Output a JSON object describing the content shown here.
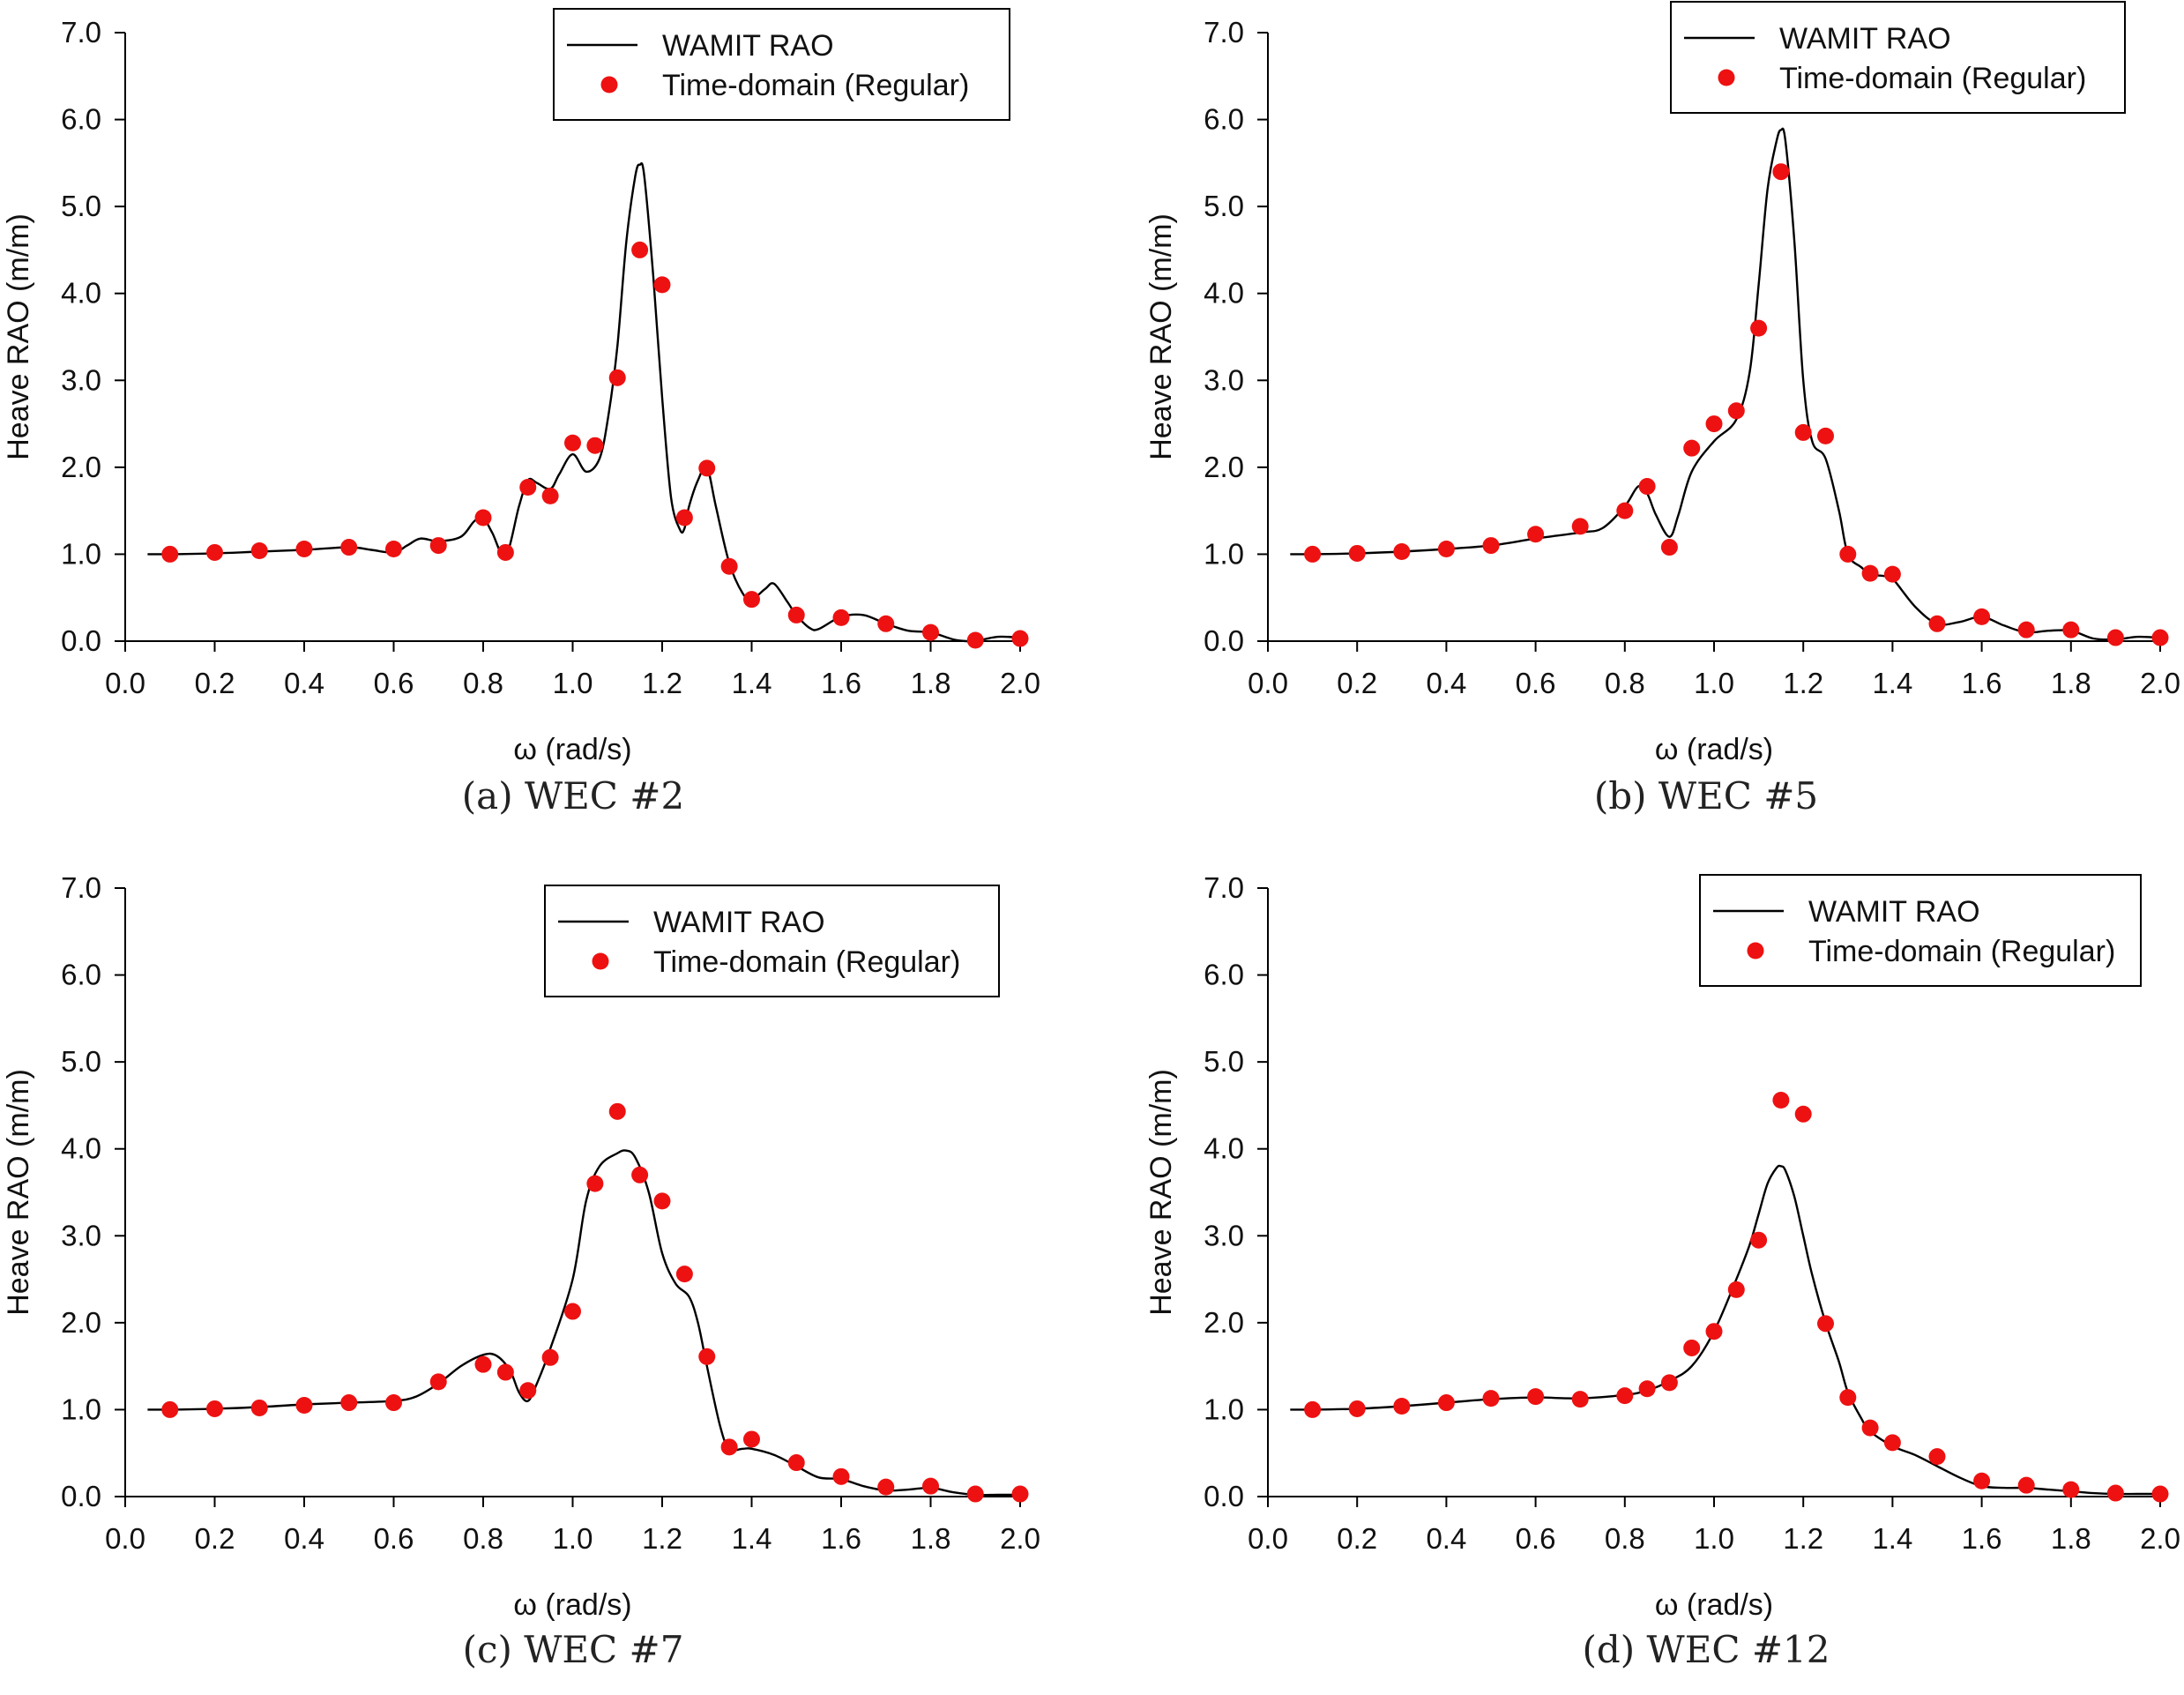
{
  "figure": {
    "description_free": true
  },
  "chart_data": [
    {
      "id": "a",
      "type": "line",
      "caption": "(a) WEC #2",
      "xlabel": "ω (rad/s)",
      "ylabel": "Heave RAO (m/m)",
      "xlim": [
        0.0,
        2.0
      ],
      "ylim": [
        0.0,
        7.0
      ],
      "xticks": [
        "0.0",
        "0.2",
        "0.4",
        "0.6",
        "0.8",
        "1.0",
        "1.2",
        "1.4",
        "1.6",
        "1.8",
        "2.0"
      ],
      "yticks": [
        "0.0",
        "1.0",
        "2.0",
        "3.0",
        "4.0",
        "5.0",
        "6.0",
        "7.0"
      ],
      "legend_position": "top-right",
      "series": [
        {
          "name": "WAMIT RAO",
          "style": "line",
          "color": "#000000",
          "x": [
            0.05,
            0.1,
            0.2,
            0.3,
            0.4,
            0.5,
            0.55,
            0.6,
            0.63,
            0.66,
            0.7,
            0.75,
            0.78,
            0.8,
            0.82,
            0.85,
            0.88,
            0.9,
            0.92,
            0.95,
            0.97,
            1.0,
            1.03,
            1.06,
            1.08,
            1.1,
            1.12,
            1.14,
            1.15,
            1.16,
            1.18,
            1.2,
            1.22,
            1.24,
            1.25,
            1.26,
            1.28,
            1.3,
            1.32,
            1.35,
            1.38,
            1.4,
            1.43,
            1.45,
            1.48,
            1.5,
            1.53,
            1.55,
            1.6,
            1.65,
            1.7,
            1.75,
            1.8,
            1.85,
            1.88,
            1.9,
            1.95,
            2.0
          ],
          "values": [
            1.0,
            1.0,
            1.01,
            1.03,
            1.05,
            1.08,
            1.05,
            1.02,
            1.1,
            1.18,
            1.15,
            1.2,
            1.38,
            1.42,
            1.25,
            0.98,
            1.55,
            1.85,
            1.82,
            1.75,
            1.92,
            2.15,
            1.95,
            2.1,
            2.6,
            3.4,
            4.6,
            5.35,
            5.48,
            5.35,
            4.2,
            2.8,
            1.65,
            1.28,
            1.3,
            1.55,
            1.85,
            2.0,
            1.55,
            0.9,
            0.55,
            0.48,
            0.6,
            0.66,
            0.45,
            0.3,
            0.15,
            0.14,
            0.28,
            0.3,
            0.2,
            0.12,
            0.1,
            0.02,
            0.0,
            0.0,
            0.05,
            0.04
          ]
        },
        {
          "name": "Time-domain (Regular)",
          "style": "markers",
          "color": "#ee1111",
          "x": [
            0.1,
            0.2,
            0.3,
            0.4,
            0.5,
            0.6,
            0.7,
            0.8,
            0.85,
            0.9,
            0.95,
            1.0,
            1.05,
            1.1,
            1.15,
            1.2,
            1.25,
            1.3,
            1.35,
            1.4,
            1.5,
            1.6,
            1.7,
            1.8,
            1.9,
            2.0
          ],
          "values": [
            1.0,
            1.02,
            1.04,
            1.06,
            1.08,
            1.06,
            1.1,
            1.42,
            1.02,
            1.77,
            1.67,
            2.28,
            2.25,
            3.03,
            4.5,
            4.1,
            1.42,
            1.99,
            0.86,
            0.48,
            0.3,
            0.27,
            0.2,
            0.1,
            0.01,
            0.03
          ]
        }
      ]
    },
    {
      "id": "b",
      "type": "line",
      "caption": "(b) WEC #5",
      "xlabel": "ω (rad/s)",
      "ylabel": "Heave RAO (m/m)",
      "xlim": [
        0.0,
        2.0
      ],
      "ylim": [
        0.0,
        7.0
      ],
      "xticks": [
        "0.0",
        "0.2",
        "0.4",
        "0.6",
        "0.8",
        "1.0",
        "1.2",
        "1.4",
        "1.6",
        "1.8",
        "2.0"
      ],
      "yticks": [
        "0.0",
        "1.0",
        "2.0",
        "3.0",
        "4.0",
        "5.0",
        "6.0",
        "7.0"
      ],
      "legend_position": "top-right",
      "series": [
        {
          "name": "WAMIT RAO",
          "style": "line",
          "color": "#000000",
          "x": [
            0.05,
            0.1,
            0.2,
            0.3,
            0.4,
            0.5,
            0.6,
            0.7,
            0.75,
            0.8,
            0.83,
            0.85,
            0.87,
            0.9,
            0.92,
            0.95,
            1.0,
            1.05,
            1.08,
            1.1,
            1.12,
            1.14,
            1.15,
            1.16,
            1.18,
            1.2,
            1.22,
            1.25,
            1.28,
            1.3,
            1.33,
            1.35,
            1.38,
            1.4,
            1.45,
            1.5,
            1.55,
            1.6,
            1.65,
            1.7,
            1.75,
            1.8,
            1.85,
            1.9,
            1.95,
            2.0
          ],
          "values": [
            1.0,
            1.0,
            1.01,
            1.03,
            1.06,
            1.1,
            1.18,
            1.25,
            1.3,
            1.55,
            1.78,
            1.7,
            1.45,
            1.2,
            1.45,
            1.95,
            2.3,
            2.55,
            3.1,
            4.1,
            5.2,
            5.75,
            5.88,
            5.75,
            4.6,
            3.0,
            2.3,
            2.1,
            1.5,
            1.0,
            0.85,
            0.77,
            0.75,
            0.72,
            0.4,
            0.2,
            0.22,
            0.28,
            0.18,
            0.1,
            0.12,
            0.12,
            0.03,
            0.02,
            0.05,
            0.04
          ]
        },
        {
          "name": "Time-domain (Regular)",
          "style": "markers",
          "color": "#ee1111",
          "x": [
            0.1,
            0.2,
            0.3,
            0.4,
            0.5,
            0.6,
            0.7,
            0.8,
            0.85,
            0.9,
            0.95,
            1.0,
            1.05,
            1.1,
            1.15,
            1.2,
            1.25,
            1.3,
            1.35,
            1.4,
            1.5,
            1.6,
            1.7,
            1.8,
            1.9,
            2.0
          ],
          "values": [
            1.0,
            1.01,
            1.03,
            1.06,
            1.1,
            1.23,
            1.32,
            1.5,
            1.78,
            1.08,
            2.22,
            2.5,
            2.65,
            3.6,
            5.4,
            2.4,
            2.36,
            1.0,
            0.78,
            0.77,
            0.2,
            0.28,
            0.13,
            0.13,
            0.04,
            0.04
          ]
        }
      ]
    },
    {
      "id": "c",
      "type": "line",
      "caption": "(c) WEC #7",
      "xlabel": "ω (rad/s)",
      "ylabel": "Heave RAO (m/m)",
      "xlim": [
        0.0,
        2.0
      ],
      "ylim": [
        0.0,
        7.0
      ],
      "xticks": [
        "0.0",
        "0.2",
        "0.4",
        "0.6",
        "0.8",
        "1.0",
        "1.2",
        "1.4",
        "1.6",
        "1.8",
        "2.0"
      ],
      "yticks": [
        "0.0",
        "1.0",
        "2.0",
        "3.0",
        "4.0",
        "5.0",
        "6.0",
        "7.0"
      ],
      "legend_position": "top-right",
      "series": [
        {
          "name": "WAMIT RAO",
          "style": "line",
          "color": "#000000",
          "x": [
            0.05,
            0.1,
            0.2,
            0.3,
            0.4,
            0.5,
            0.6,
            0.65,
            0.7,
            0.75,
            0.8,
            0.83,
            0.86,
            0.88,
            0.9,
            0.92,
            0.95,
            1.0,
            1.03,
            1.06,
            1.1,
            1.12,
            1.14,
            1.17,
            1.2,
            1.23,
            1.26,
            1.28,
            1.3,
            1.33,
            1.35,
            1.38,
            1.4,
            1.45,
            1.5,
            1.55,
            1.6,
            1.65,
            1.7,
            1.75,
            1.8,
            1.85,
            1.9,
            1.95,
            2.0
          ],
          "values": [
            1.0,
            1.0,
            1.01,
            1.03,
            1.06,
            1.08,
            1.1,
            1.15,
            1.3,
            1.5,
            1.63,
            1.62,
            1.45,
            1.2,
            1.1,
            1.3,
            1.7,
            2.5,
            3.4,
            3.8,
            3.95,
            3.98,
            3.9,
            3.5,
            2.8,
            2.45,
            2.3,
            2.0,
            1.5,
            0.8,
            0.55,
            0.55,
            0.55,
            0.48,
            0.35,
            0.22,
            0.2,
            0.12,
            0.07,
            0.08,
            0.1,
            0.05,
            0.02,
            0.02,
            0.02
          ]
        },
        {
          "name": "Time-domain (Regular)",
          "style": "markers",
          "color": "#ee1111",
          "x": [
            0.1,
            0.2,
            0.3,
            0.4,
            0.5,
            0.6,
            0.7,
            0.8,
            0.85,
            0.9,
            0.95,
            1.0,
            1.05,
            1.1,
            1.15,
            1.2,
            1.25,
            1.3,
            1.35,
            1.4,
            1.5,
            1.6,
            1.7,
            1.8,
            1.9,
            2.0
          ],
          "values": [
            1.0,
            1.01,
            1.02,
            1.05,
            1.08,
            1.08,
            1.32,
            1.52,
            1.43,
            1.22,
            1.6,
            2.13,
            3.6,
            4.43,
            3.7,
            3.4,
            2.56,
            1.61,
            0.57,
            0.66,
            0.39,
            0.23,
            0.11,
            0.12,
            0.03,
            0.03
          ]
        }
      ]
    },
    {
      "id": "d",
      "type": "line",
      "caption": "(d) WEC #12",
      "xlabel": "ω (rad/s)",
      "ylabel": "Heave RAO (m/m)",
      "xlim": [
        0.0,
        2.0
      ],
      "ylim": [
        0.0,
        7.0
      ],
      "xticks": [
        "0.0",
        "0.2",
        "0.4",
        "0.6",
        "0.8",
        "1.0",
        "1.2",
        "1.4",
        "1.6",
        "1.8",
        "2.0"
      ],
      "yticks": [
        "0.0",
        "1.0",
        "2.0",
        "3.0",
        "4.0",
        "5.0",
        "6.0",
        "7.0"
      ],
      "legend_position": "top-right",
      "series": [
        {
          "name": "WAMIT RAO",
          "style": "line",
          "color": "#000000",
          "x": [
            0.05,
            0.1,
            0.2,
            0.3,
            0.4,
            0.5,
            0.6,
            0.7,
            0.8,
            0.85,
            0.9,
            0.95,
            1.0,
            1.05,
            1.08,
            1.1,
            1.12,
            1.14,
            1.15,
            1.16,
            1.18,
            1.2,
            1.22,
            1.25,
            1.28,
            1.3,
            1.33,
            1.35,
            1.4,
            1.45,
            1.5,
            1.55,
            1.6,
            1.65,
            1.7,
            1.75,
            1.8,
            1.85,
            1.9,
            1.95,
            2.0
          ],
          "values": [
            1.0,
            1.0,
            1.01,
            1.04,
            1.08,
            1.12,
            1.14,
            1.13,
            1.17,
            1.22,
            1.33,
            1.5,
            1.9,
            2.5,
            2.9,
            3.25,
            3.6,
            3.78,
            3.8,
            3.75,
            3.45,
            3.0,
            2.55,
            2.0,
            1.55,
            1.2,
            0.9,
            0.75,
            0.58,
            0.48,
            0.35,
            0.22,
            0.12,
            0.1,
            0.1,
            0.08,
            0.06,
            0.04,
            0.03,
            0.03,
            0.03
          ]
        },
        {
          "name": "Time-domain (Regular)",
          "style": "markers",
          "color": "#ee1111",
          "x": [
            0.1,
            0.2,
            0.3,
            0.4,
            0.5,
            0.6,
            0.7,
            0.8,
            0.85,
            0.9,
            0.95,
            1.0,
            1.05,
            1.1,
            1.15,
            1.2,
            1.25,
            1.3,
            1.35,
            1.4,
            1.5,
            1.6,
            1.7,
            1.8,
            1.9,
            2.0
          ],
          "values": [
            1.0,
            1.01,
            1.04,
            1.08,
            1.13,
            1.15,
            1.12,
            1.16,
            1.24,
            1.31,
            1.71,
            1.9,
            2.38,
            2.95,
            4.56,
            4.4,
            1.99,
            1.14,
            0.79,
            0.62,
            0.46,
            0.18,
            0.13,
            0.08,
            0.04,
            0.03
          ]
        }
      ]
    }
  ]
}
